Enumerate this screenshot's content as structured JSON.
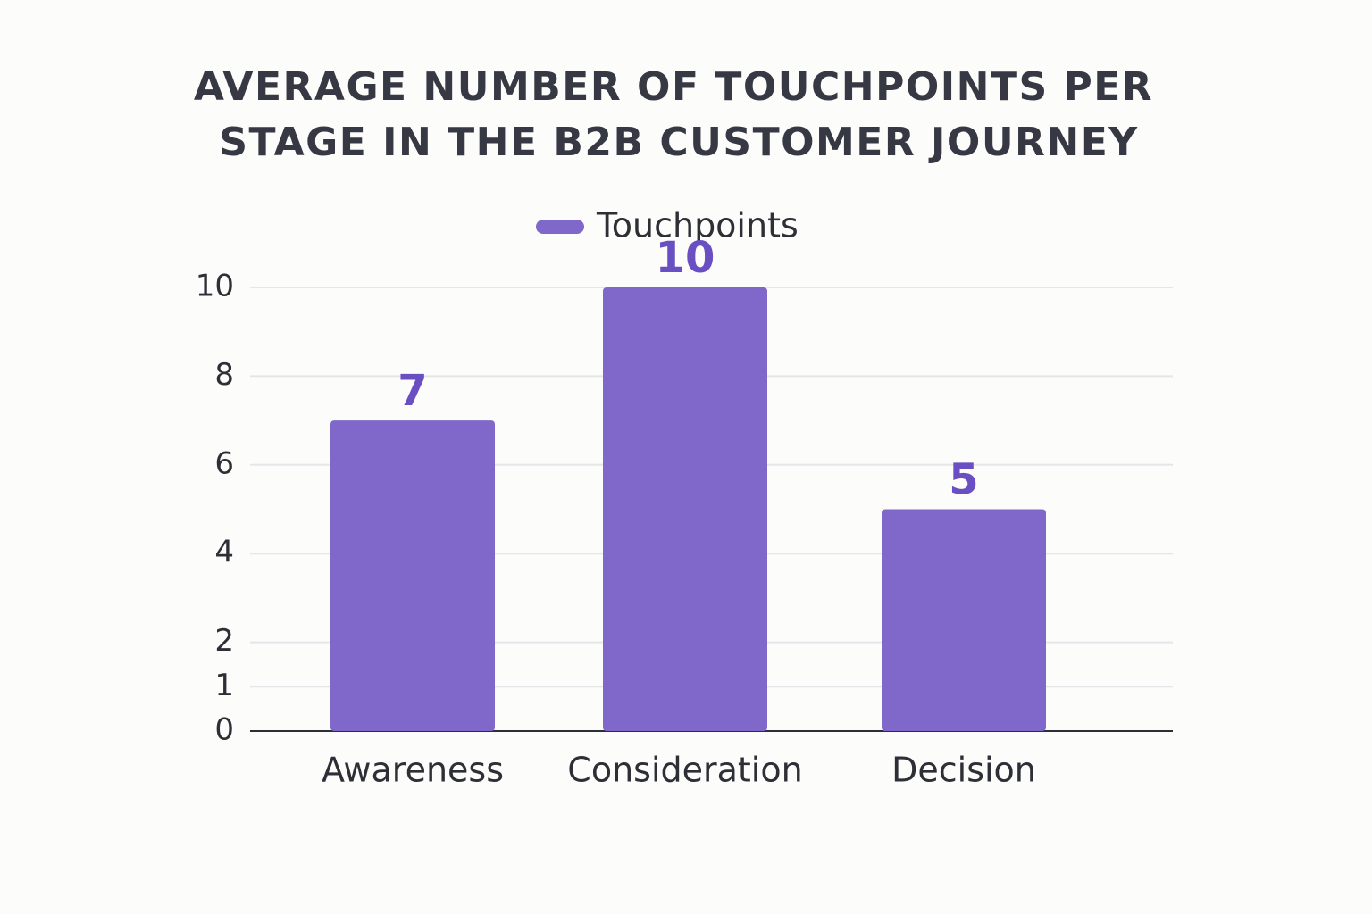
{
  "chart_data": {
    "type": "bar",
    "title_lines": [
      "AVERAGE NUMBER OF TOUCHPOINTS PER",
      "STAGE IN THE B2B CUSTOMER JOURNEY"
    ],
    "categories": [
      "Awareness",
      "Consideration",
      "Decision"
    ],
    "series": [
      {
        "name": "Touchpoints",
        "color": "#7f68c9",
        "values": [
          7,
          10,
          5
        ]
      }
    ],
    "ylim": [
      0,
      10
    ],
    "yticks": [
      0,
      1,
      2,
      4,
      6,
      8,
      10
    ],
    "grid": true,
    "legend": "top"
  }
}
